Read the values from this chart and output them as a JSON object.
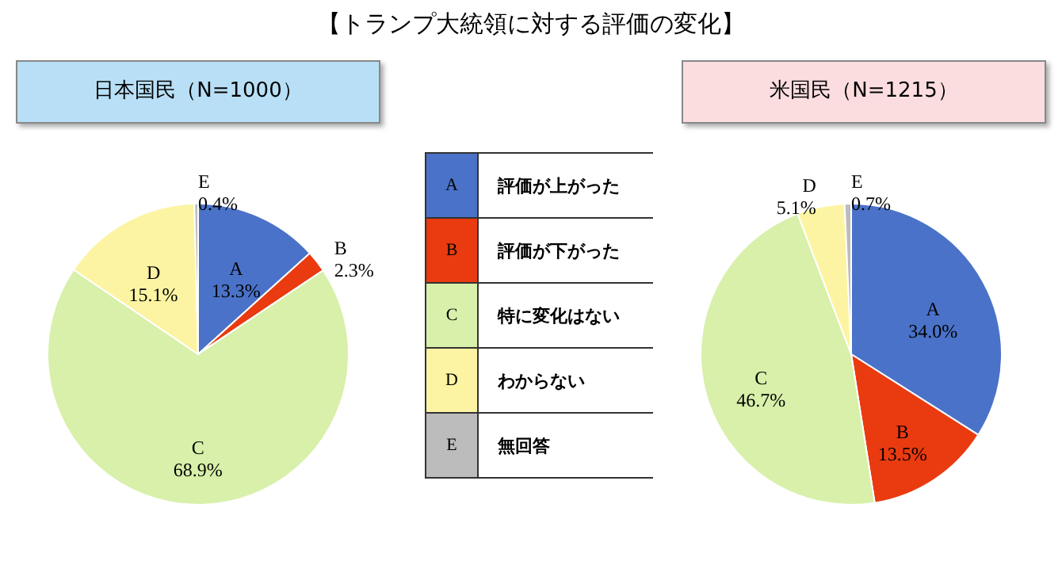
{
  "chart_data": [
    {
      "type": "pie",
      "title": "【トランプ大統領に対する評価の変化】",
      "subtitle": "日本国民（N=1000）",
      "categories": [
        "A",
        "B",
        "C",
        "D",
        "E"
      ],
      "values": [
        13.3,
        2.3,
        68.9,
        15.1,
        0.4
      ],
      "value_labels": [
        "13.3%",
        "2.3%",
        "68.9%",
        "15.1%",
        "0.4%"
      ],
      "colors": [
        "#4a72c8",
        "#ea3a10",
        "#d8f0aa",
        "#fcf4a2",
        "#bcbcbc"
      ]
    },
    {
      "type": "other",
      "categories": [
        "A",
        "B",
        "C",
        "D",
        "E"
      ],
      "colors": [
        "#4a72c8",
        "#ea3a10",
        "#d8f0aa",
        "#fcf4a2",
        "#bcbcbc"
      ],
      "annotations": [
        "評価が上がった",
        "評価が下がった",
        "特に変化はない",
        "わからない",
        "無回答"
      ]
    },
    {
      "type": "pie",
      "subtitle": "米国民（N=1215）",
      "categories": [
        "A",
        "B",
        "C",
        "D",
        "E"
      ],
      "values": [
        34.0,
        13.5,
        46.7,
        5.1,
        0.7
      ],
      "value_labels": [
        "34.0%",
        "13.5%",
        "46.7%",
        "5.1%",
        "0.7%"
      ],
      "colors": [
        "#4a72c8",
        "#ea3a10",
        "#d8f0aa",
        "#fcf4a2",
        "#bcbcbc"
      ]
    }
  ]
}
